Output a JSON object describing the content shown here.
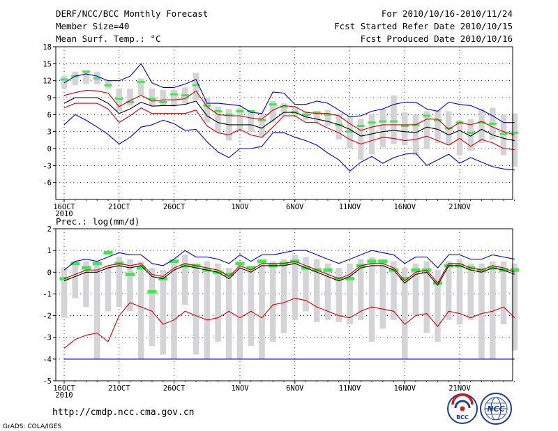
{
  "header": {
    "title": "DERF/NCC/BCC Monthly Forecast",
    "member_size": "Member Size=40",
    "variable": "Mean Surf. Temp.: °C",
    "forecast_period": "For 2010/10/16-2010/11/24",
    "refer_date": "Fcst Started Refer Date 2010/10/15",
    "produced_date": "Fcst Produced Date 2010/10/16"
  },
  "footer": {
    "url": "http://cmdp.ncc.cma.gov.cn",
    "grads_credit": "GrADS: COLA/IGES",
    "logo_bcc": "BCC",
    "logo_ncc": "NCC"
  },
  "colors": {
    "mean": "#000000",
    "spread": "#cc0000",
    "envelope": "#0000cc",
    "box": "#d4d4d6",
    "median": "#3ee84e"
  },
  "chart_data": [
    {
      "type": "line",
      "title": "Mean Surf. Temp.: °C",
      "x_tick_labels": [
        "16OCT",
        "21OCT",
        "26OCT",
        "1NOV",
        "6NOV",
        "11NOV",
        "16NOV",
        "21NOV"
      ],
      "x_tick_days": [
        0,
        5,
        10,
        16,
        21,
        26,
        31,
        36
      ],
      "x_year_label": "2010",
      "ylim": [
        -9,
        18
      ],
      "yticks": [
        -6,
        -3,
        0,
        3,
        6,
        9,
        12,
        15,
        18
      ],
      "series": [
        {
          "name": "Ensemble mean",
          "color": "#000000",
          "values": [
            8,
            9,
            9,
            9,
            8,
            6.2,
            7,
            8.2,
            7.5,
            7.6,
            7.6,
            7.8,
            8.4,
            5.8,
            4.6,
            4.2,
            4.2,
            4.2,
            3.6,
            5,
            6.4,
            6.4,
            5.6,
            5.2,
            4.8,
            4.2,
            3.4,
            2.2,
            2.6,
            3,
            3.2,
            3,
            2.8,
            3.8,
            3.4,
            2.4,
            3.2,
            2.2,
            3.4,
            2.4,
            1.8,
            1.4
          ]
        },
        {
          "name": "Mean + 1 SD",
          "color": "#cc0000",
          "values": [
            9.4,
            9.9,
            10.3,
            10.2,
            9.8,
            7.4,
            8.5,
            9.4,
            8.4,
            8.6,
            8.6,
            8.8,
            10.2,
            7.4,
            6,
            5.8,
            5.8,
            5.4,
            5.2,
            6.8,
            7.6,
            7.4,
            6.4,
            6.2,
            6.2,
            5.8,
            4.4,
            3.2,
            3.8,
            4.2,
            4.2,
            4.2,
            4.2,
            5.2,
            5.2,
            3.4,
            4.6,
            4.2,
            4.8,
            3.8,
            3,
            2.4
          ]
        },
        {
          "name": "Mean - 1 SD",
          "color": "#cc0000",
          "values": [
            7.2,
            8,
            8,
            8,
            7,
            4.6,
            5.8,
            7.2,
            6.2,
            6.2,
            6.2,
            6.2,
            6.8,
            4,
            2.8,
            2.4,
            3.4,
            2.4,
            2,
            3.8,
            5.8,
            5.8,
            4.6,
            4.6,
            3.6,
            2.8,
            1.6,
            0.8,
            1.4,
            2,
            1.8,
            1.4,
            1.6,
            2.2,
            1.4,
            0.6,
            1.8,
            0.4,
            1.6,
            1,
            0,
            -0.2
          ]
        },
        {
          "name": "Ensemble maximum",
          "color": "#0000cc",
          "values": [
            11.6,
            12.8,
            13.2,
            12.8,
            12,
            12,
            12.8,
            15,
            11.6,
            10.8,
            10.8,
            11.4,
            12.2,
            8,
            8,
            7.8,
            7.6,
            6.4,
            6.2,
            10,
            9.8,
            7.8,
            7.8,
            8.4,
            8,
            6.8,
            5.6,
            5.8,
            6.6,
            7,
            7.8,
            8.2,
            8.2,
            7,
            6.6,
            8.2,
            7.8,
            7.6,
            6.8,
            5.8,
            4.6,
            4.6
          ]
        },
        {
          "name": "Ensemble minimum",
          "color": "#0000cc",
          "values": [
            4.2,
            6,
            5,
            3.8,
            2.5,
            0.8,
            2,
            3.8,
            4.2,
            5,
            4.4,
            3.2,
            3.4,
            1.2,
            -0.6,
            -1.6,
            0,
            0,
            0.4,
            2.8,
            2.8,
            2,
            1.4,
            0.6,
            -0.8,
            -2,
            -4,
            -2.4,
            -1.4,
            -2.6,
            -1.6,
            -1,
            -0.8,
            -3,
            -2,
            -1,
            -2.6,
            -1.6,
            -2.4,
            -3.2,
            -3.6,
            -3.8
          ]
        }
      ],
      "boxes": {
        "name": "Ensemble spread (box)",
        "low": [
          10.6,
          11.2,
          11.4,
          11.4,
          10.6,
          6.6,
          7.6,
          9.4,
          7.6,
          7.6,
          7.4,
          8,
          8.6,
          4.6,
          2.8,
          1.4,
          3.4,
          3,
          2.2,
          4.6,
          5.8,
          5.8,
          5,
          4.6,
          4,
          1.6,
          0,
          -2,
          -1,
          0.2,
          0.8,
          0.6,
          -1.2,
          0,
          1,
          0.6,
          -1.2,
          -0.4,
          1,
          1.6,
          -1.2,
          -3.2
        ],
        "high": [
          12.8,
          13.6,
          13.8,
          13.6,
          12,
          10.6,
          10.6,
          12.4,
          10.6,
          10.4,
          10.4,
          10.8,
          13.4,
          9,
          7.4,
          7,
          7.2,
          6.8,
          6.2,
          8.4,
          8,
          7.4,
          6.6,
          6.6,
          6.8,
          6.2,
          5.6,
          5.2,
          6,
          7,
          9.4,
          6.4,
          6,
          6.6,
          6.8,
          6.6,
          5,
          5.2,
          7,
          7.2,
          6,
          6.2
        ]
      },
      "medians": [
        12.2,
        12.8,
        13.6,
        12.4,
        11.2,
        8.8,
        8.2,
        11.8,
        8.8,
        8.2,
        9.6,
        9.4,
        11.2,
        7.6,
        6.6,
        6,
        6.6,
        6.6,
        5,
        7.8,
        7.4,
        6.4,
        6,
        6.4,
        6,
        4.2,
        3,
        4,
        4.6,
        4.8,
        4.8,
        4,
        4.2,
        5.8,
        5,
        3.6,
        4.6,
        2.8,
        4.6,
        4.4,
        2.6,
        2.8
      ]
    },
    {
      "type": "line",
      "title": "Prec.: log(mm/d)",
      "x_tick_labels": [
        "16OCT",
        "21OCT",
        "26OCT",
        "1NOV",
        "6NOV",
        "11NOV",
        "16NOV",
        "21NOV"
      ],
      "x_tick_days": [
        0,
        5,
        10,
        16,
        21,
        26,
        31,
        36
      ],
      "x_year_label": "2010",
      "ylim": [
        -5,
        2
      ],
      "yticks": [
        -5,
        -4,
        -3,
        -2,
        -1,
        0,
        1,
        2
      ],
      "series": [
        {
          "name": "Ensemble mean",
          "color": "#000000",
          "values": [
            -0.4,
            -0.2,
            0,
            0,
            0.2,
            0.3,
            0.2,
            0.3,
            -0.2,
            -0.3,
            0.1,
            0.3,
            0.2,
            0.1,
            0,
            -0.3,
            0.2,
            0,
            0.3,
            0.3,
            0.3,
            0.4,
            0.2,
            0,
            -0.2,
            -0.4,
            -0.2,
            0.2,
            0.3,
            0.3,
            0.1,
            -0.5,
            -0.1,
            0,
            -0.6,
            0.3,
            0.3,
            0.1,
            0,
            0.2,
            0.1,
            -0.1
          ]
        },
        {
          "name": "Mean + 1 SD",
          "color": "#cc0000",
          "values": [
            -0.3,
            -0.1,
            0.1,
            0.1,
            0.3,
            0.4,
            0.3,
            0.4,
            -0.1,
            -0.2,
            0.2,
            0.4,
            0.3,
            0.2,
            0.1,
            -0.2,
            0.3,
            0.1,
            0.4,
            0.4,
            0.4,
            0.5,
            0.3,
            0.1,
            -0.1,
            -0.3,
            -0.1,
            0.3,
            0.4,
            0.4,
            0.2,
            -0.4,
            0,
            0.1,
            -0.5,
            0.4,
            0.4,
            0.2,
            0.1,
            0.3,
            0.2,
            0
          ]
        },
        {
          "name": "Mean - 1 SD",
          "color": "#cc0000",
          "values": [
            -3.5,
            -3.1,
            -2.9,
            -2.8,
            -3.2,
            -2,
            -1.4,
            -1.6,
            -1.8,
            -2.4,
            -2.2,
            -1.8,
            -2,
            -2.2,
            -2.1,
            -1.8,
            -2.1,
            -1.8,
            -2.1,
            -1.5,
            -1.4,
            -1.2,
            -1.3,
            -1.6,
            -1.8,
            -2,
            -2.1,
            -1.8,
            -1.6,
            -1.7,
            -1.8,
            -2.4,
            -2,
            -1.9,
            -2.5,
            -1.8,
            -1.9,
            -2.1,
            -1.9,
            -1.8,
            -1.6,
            -2.1
          ]
        },
        {
          "name": "Ensemble maximum",
          "color": "#0000cc",
          "values": [
            0.1,
            0.5,
            0.6,
            0.5,
            0.7,
            0.9,
            0.8,
            0.8,
            0.4,
            0.3,
            0.6,
            1,
            0.7,
            0.7,
            0.6,
            0.4,
            0.8,
            0.5,
            0.8,
            0.8,
            0.9,
            1,
            1,
            0.8,
            0.6,
            0.4,
            0.6,
            0.8,
            1,
            0.9,
            0.8,
            0.4,
            0.7,
            0.7,
            0.2,
            0.8,
            0.8,
            0.6,
            0.6,
            0.8,
            0.7,
            0.6
          ]
        },
        {
          "name": "Ensemble minimum",
          "color": "#0000cc",
          "values": [
            -4,
            -4,
            -4,
            -4,
            -4,
            -4,
            -4,
            -4,
            -4,
            -4,
            -4,
            -4,
            -4,
            -4,
            -4,
            -4,
            -4,
            -4,
            -4,
            -4,
            -4,
            -4,
            -4,
            -4,
            -4,
            -4,
            -4,
            -4,
            -4,
            -4,
            -4,
            -4,
            -4,
            -4,
            -4,
            -4,
            -4,
            -4,
            -4,
            -4,
            -4,
            -4
          ]
        }
      ],
      "boxes": {
        "name": "Ensemble spread (box)",
        "low": [
          -2.1,
          -1.2,
          -1.6,
          -4,
          -1.8,
          -1.6,
          -1.8,
          -4,
          -3.4,
          -3.8,
          -4,
          -1.5,
          -3.8,
          -4,
          -3.2,
          -4,
          -4,
          -3.4,
          -4,
          -3.2,
          -2.8,
          -2.2,
          -1.8,
          -2.3,
          -2.2,
          -2.3,
          -2.4,
          -2.2,
          -3.2,
          -2.6,
          -2.2,
          -4,
          -2,
          -2.8,
          -3.2,
          -2.2,
          -2.4,
          -2.2,
          -4,
          -4,
          -2.4,
          -3.6
        ],
        "high": [
          0.2,
          0.4,
          0.5,
          0.4,
          0.3,
          0.7,
          0.6,
          0.5,
          0.2,
          0.1,
          0.4,
          0.8,
          0.4,
          0.5,
          0.4,
          0.2,
          0.5,
          0.3,
          0.4,
          0.5,
          0.6,
          0.8,
          0.7,
          0.6,
          0.4,
          0.2,
          0.4,
          0.6,
          0.7,
          0.6,
          0.5,
          0.2,
          0.4,
          0.5,
          0.1,
          0.5,
          0.6,
          0.4,
          0.4,
          0.5,
          0.5,
          0.4
        ]
      },
      "medians": [
        -0.3,
        0.4,
        0.2,
        0.4,
        0.9,
        0.4,
        -0.1,
        0.2,
        -0.9,
        -0.3,
        0.5,
        0.3,
        0.3,
        0.1,
        0,
        -0.1,
        0.4,
        0.2,
        0.5,
        0.3,
        0.4,
        0.5,
        0.2,
        0.1,
        0.1,
        -0.3,
        -0.3,
        0.3,
        0.5,
        0.5,
        0.1,
        -0.3,
        0.1,
        0.1,
        -0.5,
        0.3,
        0.3,
        0.2,
        0.1,
        0.2,
        0.1,
        0.1
      ]
    }
  ]
}
